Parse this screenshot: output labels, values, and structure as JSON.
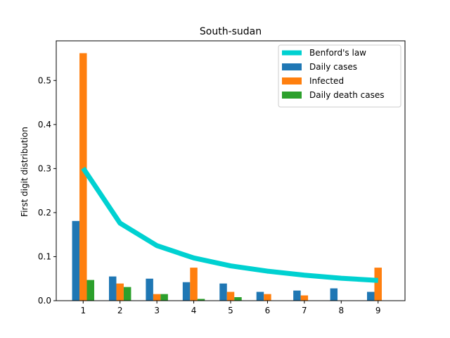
{
  "chart_data": {
    "type": "bar",
    "title": "South-sudan",
    "xlabel": "",
    "ylabel": "First digit distribution",
    "categories": [
      1,
      2,
      3,
      4,
      5,
      6,
      7,
      8,
      9
    ],
    "xlim": [
      0.27,
      9.73
    ],
    "ylim": [
      0,
      0.59
    ],
    "yticks": [
      0.0,
      0.1,
      0.2,
      0.3,
      0.4,
      0.5
    ],
    "ytick_labels": [
      "0.0",
      "0.1",
      "0.2",
      "0.3",
      "0.4",
      "0.5"
    ],
    "xtick_labels": [
      "1",
      "2",
      "3",
      "4",
      "5",
      "6",
      "7",
      "8",
      "9"
    ],
    "grid": false,
    "legend_position": "top-right",
    "series": [
      {
        "name": "Daily cases",
        "kind": "bar",
        "color": "#1f77b4",
        "values": [
          0.181,
          0.055,
          0.05,
          0.042,
          0.039,
          0.02,
          0.023,
          0.028,
          0.02
        ]
      },
      {
        "name": "Infected",
        "kind": "bar",
        "color": "#ff7f0e",
        "values": [
          0.562,
          0.039,
          0.015,
          0.075,
          0.02,
          0.015,
          0.012,
          0.0,
          0.075
        ]
      },
      {
        "name": "Daily death cases",
        "kind": "bar",
        "color": "#2ca02c",
        "values": [
          0.047,
          0.031,
          0.015,
          0.004,
          0.008,
          0.0,
          0.0,
          0.0,
          0.0
        ]
      },
      {
        "name": "Benford's law",
        "kind": "line",
        "color": "#00d1d1",
        "values": [
          0.301,
          0.176,
          0.125,
          0.097,
          0.079,
          0.067,
          0.058,
          0.051,
          0.046
        ]
      }
    ]
  }
}
